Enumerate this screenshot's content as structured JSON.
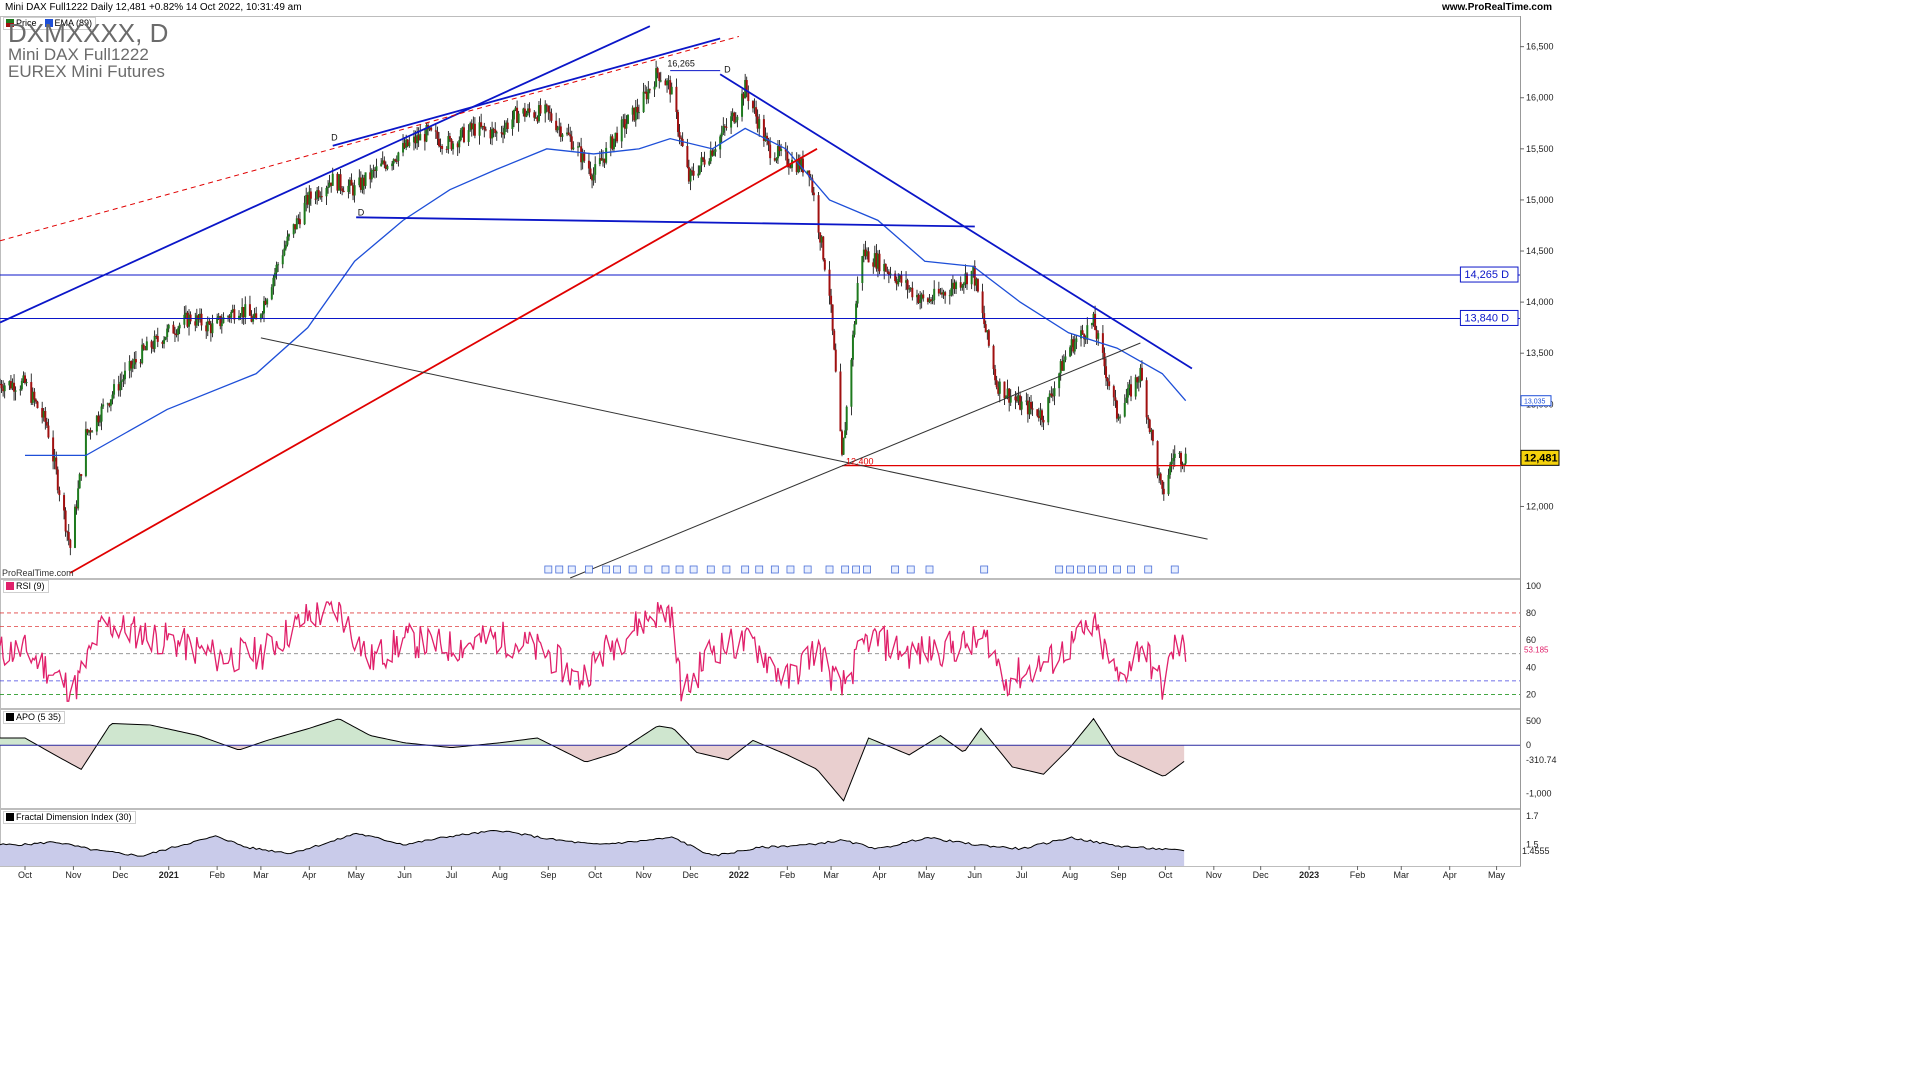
{
  "header": {
    "title": "Mini DAX Full1222 Daily 12,481 +0.82% 14 Oct 2022, 10:31:49 am",
    "site": "www.ProRealTime.com"
  },
  "price_panel": {
    "symbol": "DXMXXXX, D",
    "name": "Mini DAX Full1222",
    "exchange": "EUREX Mini Futures",
    "legend_price": "Price",
    "legend_ema": "EMA (89)",
    "credit": "ProRealTime.com",
    "level_labels": [
      "14,265 D",
      "13,840 D"
    ],
    "ema_value": "13,035",
    "last_value": "12,481",
    "annotations": [
      "16,265",
      "D",
      "D",
      "D",
      "12,400"
    ]
  },
  "indicators": {
    "rsi": {
      "legend": "RSI (9)",
      "value": "53.185"
    },
    "apo": {
      "legend": "APO (5 35)",
      "value": "-310.74"
    },
    "fdi": {
      "legend": "Fractal Dimension Index (30)",
      "value": "1.4555"
    }
  },
  "colors": {
    "candle_up": "#1e7a1e",
    "candle_down": "#a01010",
    "ema": "#1e4fd8",
    "trend_blue": "#0b16c8",
    "trend_red": "#e00000",
    "rsi": "#e0206a",
    "apo_pos_fill": "#cfe6cf",
    "apo_neg_fill": "#e9cfcf",
    "fdi_fill": "#c9cbea"
  },
  "chart_data": [
    {
      "type": "candlestick",
      "title": "Mini DAX Full1222 Daily",
      "x_ticks": [
        "Oct",
        "Nov",
        "Dec",
        "2021",
        "Feb",
        "Mar",
        "Apr",
        "May",
        "Jun",
        "Jul",
        "Aug",
        "Sep",
        "Oct",
        "Nov",
        "Dec",
        "2022",
        "Feb",
        "Mar",
        "Apr",
        "May",
        "Jun",
        "Jul",
        "Aug",
        "Sep",
        "Oct",
        "Nov",
        "Dec",
        "2023",
        "Feb",
        "Mar",
        "Apr",
        "May"
      ],
      "y_ticks": [
        12000,
        12500,
        13000,
        13500,
        14000,
        14500,
        15000,
        15500,
        16000,
        16500
      ],
      "ylim": [
        11300,
        16800
      ],
      "last_price": 12481,
      "series": [
        {
          "name": "Price",
          "note": "approximate daily closes (monthly anchor points read off the chart)",
          "x": [
            "2020-10-01",
            "2020-10-15",
            "2020-10-30",
            "2020-11-09",
            "2020-11-30",
            "2020-12-15",
            "2020-12-31",
            "2021-01-15",
            "2021-01-29",
            "2021-02-15",
            "2021-02-26",
            "2021-03-15",
            "2021-03-31",
            "2021-04-15",
            "2021-04-30",
            "2021-05-15",
            "2021-05-31",
            "2021-06-15",
            "2021-06-30",
            "2021-07-15",
            "2021-07-30",
            "2021-08-13",
            "2021-08-31",
            "2021-09-15",
            "2021-09-30",
            "2021-10-15",
            "2021-10-29",
            "2021-11-10",
            "2021-11-18",
            "2021-11-30",
            "2021-12-15",
            "2021-12-31",
            "2022-01-05",
            "2022-01-20",
            "2022-01-31",
            "2022-02-15",
            "2022-02-28",
            "2022-03-08",
            "2022-03-20",
            "2022-03-31",
            "2022-04-15",
            "2022-04-30",
            "2022-05-13",
            "2022-05-31",
            "2022-06-15",
            "2022-06-30",
            "2022-07-15",
            "2022-07-31",
            "2022-08-16",
            "2022-08-31",
            "2022-09-15",
            "2022-09-29",
            "2022-10-06",
            "2022-10-14"
          ],
          "values": [
            13200,
            12800,
            11600,
            12700,
            13200,
            13500,
            13700,
            13850,
            13750,
            13950,
            13800,
            14500,
            15000,
            15200,
            15100,
            15300,
            15500,
            15650,
            15550,
            15700,
            15650,
            15850,
            15850,
            15600,
            15250,
            15650,
            15900,
            16250,
            16100,
            15200,
            15500,
            15880,
            16100,
            15500,
            15400,
            15300,
            14100,
            12450,
            14500,
            14400,
            14200,
            14000,
            14100,
            14300,
            13200,
            13000,
            12900,
            13550,
            13800,
            12900,
            13300,
            12100,
            12500,
            12481
          ]
        },
        {
          "name": "EMA (89)",
          "x": [
            "2020-10-01",
            "2020-11-09",
            "2020-12-31",
            "2021-02-26",
            "2021-03-31",
            "2021-04-30",
            "2021-05-31",
            "2021-06-30",
            "2021-07-30",
            "2021-08-31",
            "2021-09-30",
            "2021-10-29",
            "2021-11-18",
            "2021-12-15",
            "2022-01-05",
            "2022-01-31",
            "2022-02-28",
            "2022-03-31",
            "2022-04-30",
            "2022-05-31",
            "2022-06-30",
            "2022-07-31",
            "2022-08-31",
            "2022-09-29",
            "2022-10-14"
          ],
          "values": [
            12500,
            12500,
            12950,
            13300,
            13750,
            14400,
            14800,
            15100,
            15300,
            15500,
            15450,
            15500,
            15600,
            15500,
            15700,
            15500,
            15000,
            14800,
            14400,
            14350,
            14000,
            13700,
            13550,
            13300,
            13035
          ]
        }
      ],
      "horizontal_levels": [
        14265,
        13840,
        12400
      ]
    },
    {
      "type": "line",
      "title": "RSI (9)",
      "y_ticks": [
        20,
        40,
        60,
        80,
        100
      ],
      "ylim": [
        10,
        105
      ],
      "series": [
        {
          "name": "RSI (9)",
          "x": [
            "2020-10-01",
            "2020-10-15",
            "2020-11-01",
            "2020-11-20",
            "2021-01-01",
            "2021-02-01",
            "2021-03-01",
            "2021-04-01",
            "2021-04-20",
            "2021-05-10",
            "2021-06-01",
            "2021-07-01",
            "2021-08-01",
            "2021-09-01",
            "2021-09-20",
            "2021-10-10",
            "2021-11-05",
            "2021-11-18",
            "2021-11-26",
            "2021-12-15",
            "2022-01-10",
            "2022-02-01",
            "2022-02-20",
            "2022-03-07",
            "2022-03-25",
            "2022-04-20",
            "2022-05-20",
            "2022-06-10",
            "2022-06-20",
            "2022-07-20",
            "2022-08-16",
            "2022-09-01",
            "2022-09-16",
            "2022-09-29",
            "2022-10-07",
            "2022-10-14"
          ],
          "values": [
            52,
            40,
            22,
            72,
            60,
            48,
            50,
            78,
            82,
            45,
            60,
            55,
            62,
            50,
            30,
            55,
            78,
            82,
            18,
            55,
            58,
            30,
            55,
            22,
            62,
            50,
            55,
            60,
            30,
            45,
            70,
            30,
            58,
            25,
            55,
            53.185
          ]
        }
      ]
    },
    {
      "type": "area",
      "title": "APO (5 35)",
      "y_ticks": [
        -1000,
        -500,
        0,
        500
      ],
      "ylim": [
        -1300,
        750
      ],
      "series": [
        {
          "name": "APO (5 35)",
          "x": [
            "2020-10-01",
            "2020-10-20",
            "2020-11-06",
            "2020-11-25",
            "2020-12-20",
            "2021-01-20",
            "2021-02-15",
            "2021-03-05",
            "2021-04-01",
            "2021-04-20",
            "2021-05-10",
            "2021-06-01",
            "2021-07-01",
            "2021-08-01",
            "2021-08-25",
            "2021-09-25",
            "2021-10-15",
            "2021-11-10",
            "2021-11-20",
            "2021-12-05",
            "2021-12-25",
            "2022-01-10",
            "2022-02-01",
            "2022-02-20",
            "2022-03-09",
            "2022-03-25",
            "2022-04-20",
            "2022-05-10",
            "2022-05-25",
            "2022-06-05",
            "2022-06-25",
            "2022-07-15",
            "2022-08-01",
            "2022-08-16",
            "2022-08-31",
            "2022-09-20",
            "2022-09-30",
            "2022-10-14"
          ],
          "values": [
            150,
            -200,
            -500,
            450,
            420,
            200,
            -100,
            100,
            350,
            550,
            200,
            50,
            -50,
            50,
            150,
            -350,
            -150,
            400,
            350,
            -150,
            -300,
            100,
            -200,
            -500,
            -1150,
            150,
            -200,
            200,
            -150,
            350,
            -450,
            -600,
            -50,
            550,
            -200,
            -500,
            -650,
            -310.74
          ]
        }
      ]
    },
    {
      "type": "area",
      "title": "Fractal Dimension Index (30)",
      "y_ticks": [
        1.5,
        1.7
      ],
      "ylim": [
        1.35,
        1.75
      ],
      "series": [
        {
          "name": "Fractal Dimension Index (30)",
          "x": [
            "2020-10-01",
            "2020-10-20",
            "2020-11-15",
            "2020-12-15",
            "2021-01-10",
            "2021-02-01",
            "2021-02-20",
            "2021-03-20",
            "2021-04-15",
            "2021-05-01",
            "2021-06-01",
            "2021-07-01",
            "2021-08-01",
            "2021-09-01",
            "2021-10-01",
            "2021-10-25",
            "2021-11-20",
            "2021-12-15",
            "2022-01-15",
            "2022-02-15",
            "2022-03-08",
            "2022-04-01",
            "2022-05-01",
            "2022-06-01",
            "2022-07-01",
            "2022-08-01",
            "2022-09-01",
            "2022-10-14"
          ],
          "values": [
            1.5,
            1.52,
            1.46,
            1.42,
            1.5,
            1.56,
            1.48,
            1.44,
            1.52,
            1.58,
            1.5,
            1.56,
            1.6,
            1.54,
            1.5,
            1.52,
            1.55,
            1.42,
            1.48,
            1.5,
            1.53,
            1.47,
            1.55,
            1.5,
            1.47,
            1.55,
            1.49,
            1.4555
          ]
        }
      ]
    }
  ]
}
